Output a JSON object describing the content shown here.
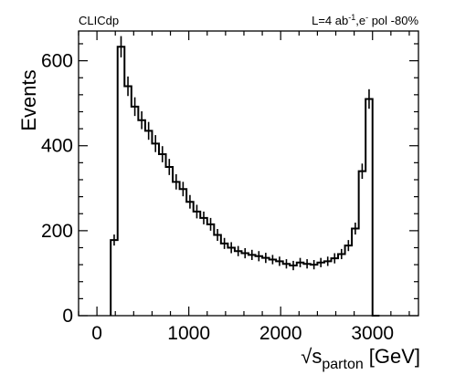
{
  "header": {
    "experiment": "CLICdp",
    "lumi_prefix": "L=4 ab",
    "lumi_exp": "-1",
    "beam_text": ",e",
    "beam_exp": "-",
    "pol_text": " pol -80%"
  },
  "chart_data": {
    "type": "histogram",
    "xlabel": "√s_parton [GeV]",
    "xlabel_parts": {
      "root": "√s",
      "sub": "parton",
      "unit": "[GeV]"
    },
    "ylabel": "Events",
    "xlim": [
      -200,
      3500
    ],
    "ylim": [
      0,
      670
    ],
    "x_ticks": [
      0,
      1000,
      2000,
      3000
    ],
    "y_ticks": [
      0,
      200,
      400,
      600
    ],
    "grid": false,
    "legend": "none",
    "bin_edges": [
      150,
      225,
      300,
      375,
      450,
      525,
      600,
      675,
      750,
      825,
      900,
      975,
      1050,
      1125,
      1200,
      1275,
      1350,
      1425,
      1500,
      1575,
      1650,
      1725,
      1800,
      1875,
      1950,
      2025,
      2100,
      2175,
      2250,
      2325,
      2400,
      2475,
      2550,
      2625,
      2700,
      2775,
      2850,
      2925,
      3000,
      3075
    ],
    "values": [
      178,
      633,
      540,
      492,
      460,
      435,
      405,
      380,
      350,
      315,
      298,
      268,
      245,
      230,
      215,
      190,
      170,
      160,
      152,
      147,
      143,
      140,
      136,
      132,
      128,
      122,
      118,
      125,
      122,
      120,
      125,
      128,
      135,
      145,
      165,
      205,
      340,
      510,
      0
    ],
    "errors": [
      13,
      25,
      23,
      22,
      21,
      21,
      20,
      19,
      19,
      18,
      17,
      16,
      16,
      15,
      15,
      14,
      13,
      13,
      12,
      12,
      12,
      12,
      12,
      11,
      11,
      11,
      11,
      11,
      11,
      11,
      11,
      11,
      12,
      12,
      13,
      14,
      18,
      23,
      0
    ],
    "style": {
      "line_color": "#000000"
    }
  }
}
